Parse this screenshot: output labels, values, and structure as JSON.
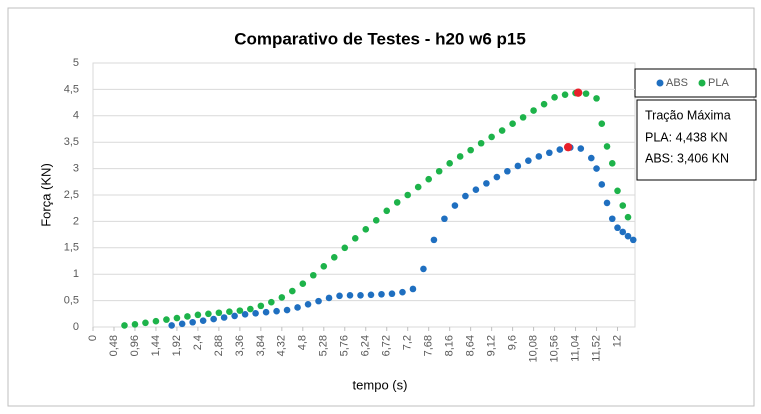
{
  "chart_data": {
    "type": "scatter",
    "title": "Comparativo de Testes - h20 w6 p15",
    "x_label": "tempo (s)",
    "y_label": "Força (KN)",
    "annotation": {
      "title": "Tração Máxima",
      "lines": [
        "PLA: 4,438 KN",
        "ABS: 3,406 KN"
      ]
    },
    "legend": "right",
    "xlim": [
      0,
      12.4
    ],
    "ylim": [
      0,
      5
    ],
    "xticks": [
      0,
      {
        "value": 0.48,
        "label": "0,48"
      },
      {
        "value": 0.96,
        "label": "0,96"
      },
      {
        "value": 1.44,
        "label": "1,44"
      },
      {
        "value": 1.92,
        "label": "1,92"
      },
      {
        "value": 2.4,
        "label": "2,4"
      },
      {
        "value": 2.88,
        "label": "2,88"
      },
      {
        "value": 3.36,
        "label": "3,36"
      },
      {
        "value": 3.84,
        "label": "3,84"
      },
      {
        "value": 4.32,
        "label": "4,32"
      },
      {
        "value": 4.8,
        "label": "4,8"
      },
      {
        "value": 5.28,
        "label": "5,28"
      },
      {
        "value": 5.76,
        "label": "5,76"
      },
      {
        "value": 6.24,
        "label": "6,24"
      },
      {
        "value": 6.72,
        "label": "6,72"
      },
      {
        "value": 7.2,
        "label": "7,2"
      },
      {
        "value": 7.68,
        "label": "7,68"
      },
      {
        "value": 8.16,
        "label": "8,16"
      },
      {
        "value": 8.64,
        "label": "8,64"
      },
      {
        "value": 9.12,
        "label": "9,12"
      },
      {
        "value": 9.6,
        "label": "9,6"
      },
      {
        "value": 10.08,
        "label": "10,08"
      },
      {
        "value": 10.56,
        "label": "10,56"
      },
      {
        "value": 11.04,
        "label": "11,04"
      },
      {
        "value": 11.52,
        "label": "11,52"
      },
      12
    ],
    "yticks": [
      0,
      {
        "value": 0.5,
        "label": "0,5"
      },
      1,
      {
        "value": 1.5,
        "label": "1,5"
      },
      2,
      {
        "value": 2.5,
        "label": "2,5"
      },
      3,
      {
        "value": 3.5,
        "label": "3,5"
      },
      4,
      {
        "value": 4.5,
        "label": "4,5"
      },
      5
    ],
    "series": [
      {
        "name": "ABS",
        "color": "#1f6fc0",
        "x": [
          1.8,
          2.04,
          2.28,
          2.52,
          2.76,
          3.0,
          3.24,
          3.48,
          3.72,
          3.96,
          4.2,
          4.44,
          4.68,
          4.92,
          5.16,
          5.4,
          5.64,
          5.88,
          6.12,
          6.36,
          6.6,
          6.84,
          7.08,
          7.32,
          7.56,
          7.8,
          8.04,
          8.28,
          8.52,
          8.76,
          9.0,
          9.24,
          9.48,
          9.72,
          9.96,
          10.2,
          10.44,
          10.68,
          10.92,
          11.16,
          11.4,
          11.52,
          11.64,
          11.76,
          11.88,
          12.0,
          12.12,
          12.24,
          12.36
        ],
        "values": [
          0.03,
          0.06,
          0.09,
          0.12,
          0.15,
          0.18,
          0.21,
          0.24,
          0.26,
          0.28,
          0.3,
          0.32,
          0.37,
          0.43,
          0.49,
          0.55,
          0.59,
          0.6,
          0.6,
          0.61,
          0.62,
          0.63,
          0.66,
          0.72,
          1.1,
          1.65,
          2.05,
          2.3,
          2.48,
          2.6,
          2.72,
          2.84,
          2.95,
          3.05,
          3.15,
          3.23,
          3.3,
          3.36,
          3.4,
          3.38,
          3.2,
          3.0,
          2.7,
          2.35,
          2.05,
          1.88,
          1.8,
          1.72,
          1.65
        ]
      },
      {
        "name": "PLA",
        "color": "#1db34a",
        "x": [
          0.72,
          0.96,
          1.2,
          1.44,
          1.68,
          1.92,
          2.16,
          2.4,
          2.64,
          2.88,
          3.12,
          3.36,
          3.6,
          3.84,
          4.08,
          4.32,
          4.56,
          4.8,
          5.04,
          5.28,
          5.52,
          5.76,
          6.0,
          6.24,
          6.48,
          6.72,
          6.96,
          7.2,
          7.44,
          7.68,
          7.92,
          8.16,
          8.4,
          8.64,
          8.88,
          9.12,
          9.36,
          9.6,
          9.84,
          10.08,
          10.32,
          10.56,
          10.8,
          11.04,
          11.28,
          11.52,
          11.64,
          11.76,
          11.88,
          12.0,
          12.12,
          12.24
        ],
        "values": [
          0.03,
          0.05,
          0.08,
          0.11,
          0.14,
          0.17,
          0.2,
          0.23,
          0.25,
          0.27,
          0.29,
          0.31,
          0.34,
          0.4,
          0.47,
          0.56,
          0.68,
          0.82,
          0.98,
          1.15,
          1.32,
          1.5,
          1.68,
          1.85,
          2.02,
          2.2,
          2.36,
          2.5,
          2.65,
          2.8,
          2.95,
          3.1,
          3.23,
          3.35,
          3.48,
          3.6,
          3.72,
          3.85,
          3.97,
          4.1,
          4.22,
          4.35,
          4.4,
          4.43,
          4.42,
          4.33,
          3.85,
          3.42,
          3.1,
          2.58,
          2.3,
          2.08
        ]
      }
    ],
    "max_points": {
      "color": "#e8202a",
      "x": [
        11.1,
        10.87
      ],
      "values": [
        4.438,
        3.406
      ]
    }
  }
}
